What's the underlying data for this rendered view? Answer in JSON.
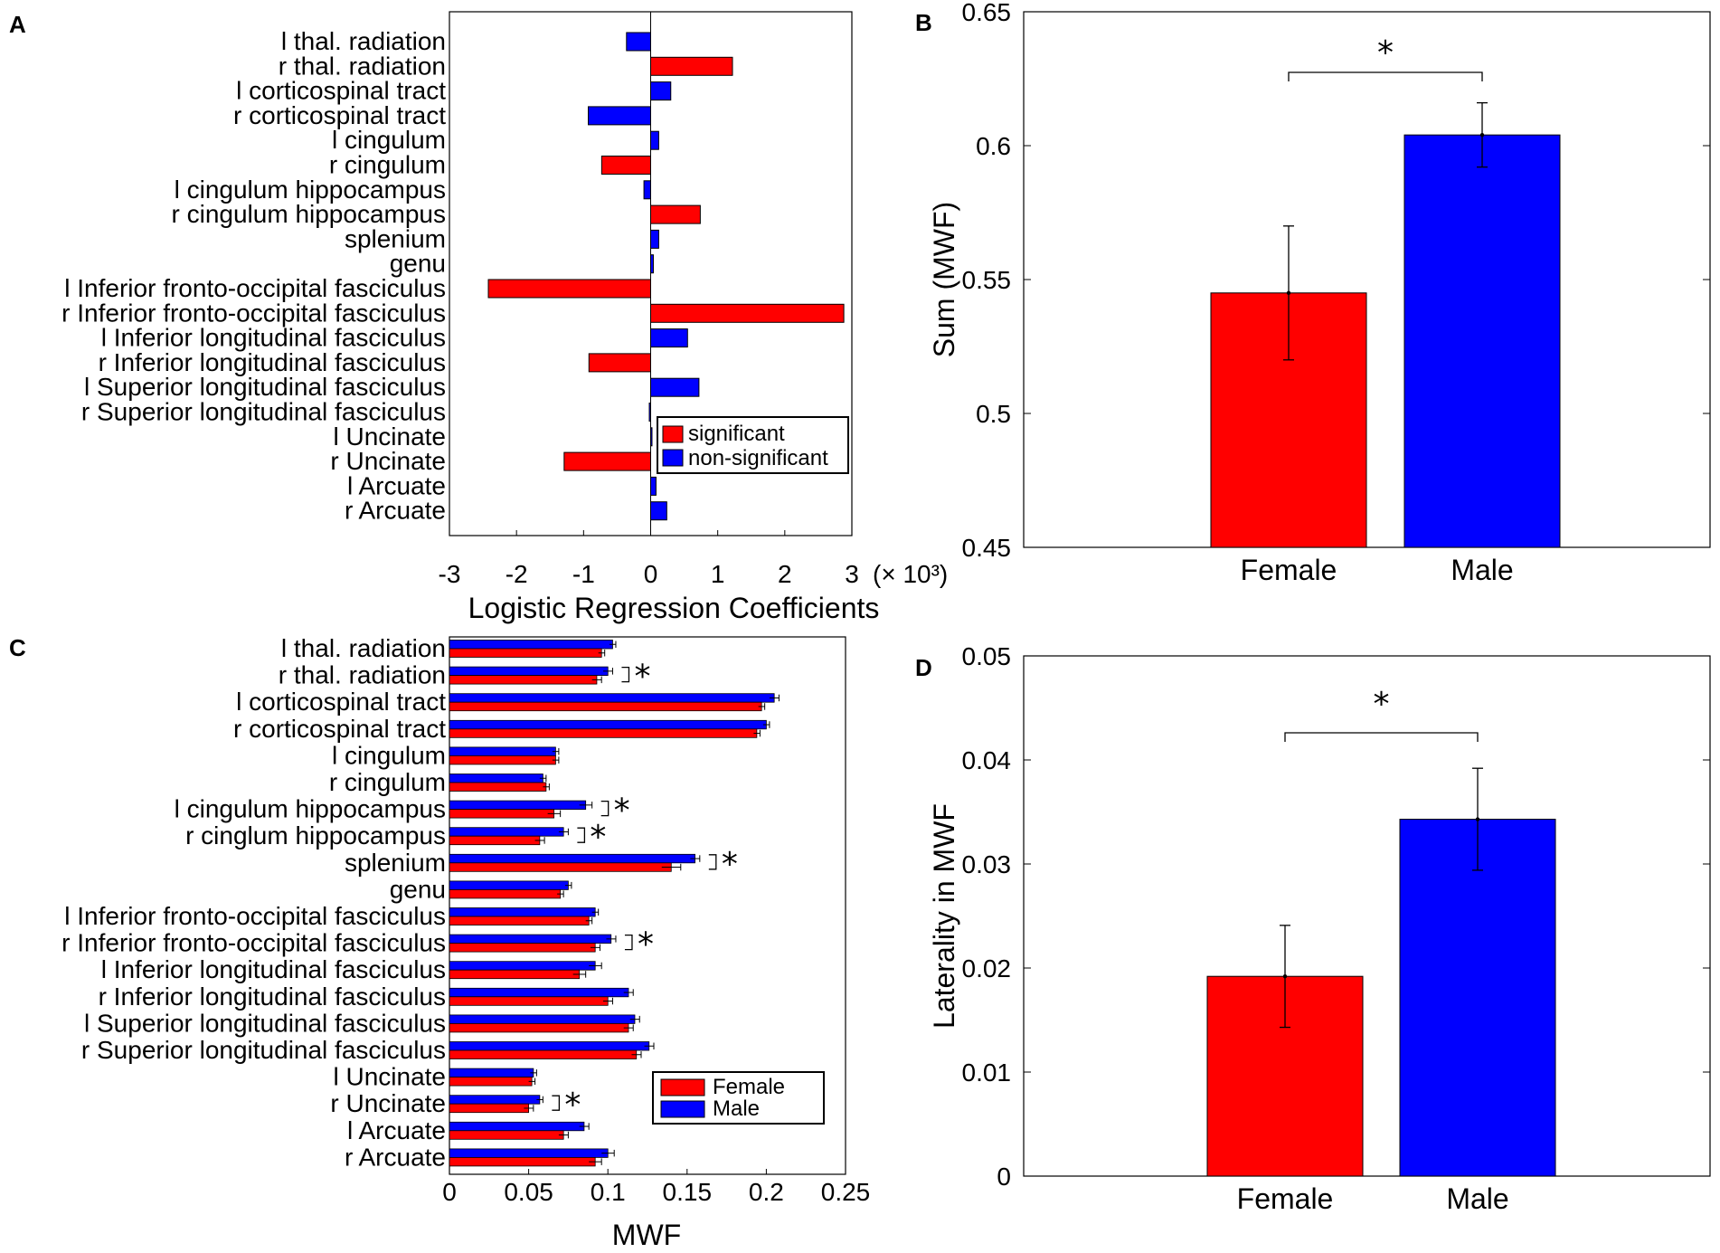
{
  "colors": {
    "red": "#ff0000",
    "blue": "#0000ff"
  },
  "chart_data": [
    {
      "panel": "A",
      "type": "bar",
      "orientation": "horizontal",
      "xlabel": "Logistic Regression Coefficients",
      "x_multiplier": "(× 10³)",
      "xlim": [
        -3,
        3
      ],
      "xticks": [
        "-3",
        "-2",
        "-1",
        "0",
        "1",
        "2",
        "3"
      ],
      "categories": [
        "l thal. radiation",
        "r thal. radiation",
        "l corticospinal tract",
        "r corticospinal tract",
        "l cingulum",
        "r cingulum",
        "l cingulum hippocampus",
        "r cingulum hippocampus",
        "splenium",
        "genu",
        "l Inferior fronto-occipital fasciculus",
        "r Inferior fronto-occipital fasciculus",
        "l Inferior longitudinal fasciculus",
        "r Inferior longitudinal fasciculus",
        "l Superior longitudinal fasciculus",
        "r Superior longitudinal fasciculus",
        "l Uncinate",
        "r Uncinate",
        "l Arcuate",
        "r Arcuate"
      ],
      "values": [
        -0.36,
        1.22,
        0.3,
        -0.93,
        0.12,
        -0.73,
        -0.1,
        0.74,
        0.12,
        0.04,
        -2.42,
        2.88,
        0.55,
        -0.92,
        0.72,
        -0.02,
        0.02,
        -1.29,
        0.08,
        0.24
      ],
      "significant": [
        false,
        true,
        false,
        false,
        false,
        true,
        false,
        true,
        false,
        false,
        true,
        true,
        false,
        true,
        false,
        false,
        false,
        true,
        false,
        false
      ],
      "legend": [
        "significant",
        "non-significant"
      ]
    },
    {
      "panel": "B",
      "type": "bar",
      "ylabel": "Sum (MWF)",
      "ylim": [
        0.45,
        0.65
      ],
      "yticks": [
        "0.45",
        "0.5",
        "0.55",
        "0.6",
        "0.65"
      ],
      "categories": [
        "Female",
        "Male"
      ],
      "values": [
        0.545,
        0.604
      ],
      "errors": [
        0.025,
        0.012
      ],
      "significance": "*"
    },
    {
      "panel": "C",
      "type": "bar",
      "orientation": "horizontal",
      "xlabel": "MWF",
      "xlim": [
        0,
        0.25
      ],
      "xticks": [
        "0",
        "0.05",
        "0.1",
        "0.15",
        "0.2",
        "0.25"
      ],
      "categories": [
        "l thal. radiation",
        "r thal. radiation",
        "l corticospinal tract",
        "r corticospinal tract",
        "l cingulum",
        "r cingulum",
        "l cingulum hippocampus",
        "r cinglum hippocampus",
        "splenium",
        "genu",
        "l Inferior fronto-occipital fasciculus",
        "r Inferior fronto-occipital fasciculus",
        "l Inferior longitudinal fasciculus",
        "r Inferior longitudinal fasciculus",
        "l Superior longitudinal fasciculus",
        "r Superior longitudinal fasciculus",
        "l Uncinate",
        "r Uncinate",
        "l Arcuate",
        "r Arcuate"
      ],
      "series": [
        {
          "name": "Female",
          "values": [
            0.096,
            0.093,
            0.197,
            0.194,
            0.067,
            0.061,
            0.066,
            0.057,
            0.14,
            0.07,
            0.088,
            0.092,
            0.082,
            0.1,
            0.113,
            0.118,
            0.052,
            0.05,
            0.072,
            0.092
          ],
          "errors": [
            0.002,
            0.003,
            0.002,
            0.002,
            0.002,
            0.002,
            0.004,
            0.003,
            0.006,
            0.002,
            0.002,
            0.003,
            0.004,
            0.003,
            0.003,
            0.003,
            0.002,
            0.003,
            0.003,
            0.004
          ]
        },
        {
          "name": "Male",
          "values": [
            0.103,
            0.1,
            0.205,
            0.2,
            0.067,
            0.059,
            0.086,
            0.072,
            0.155,
            0.075,
            0.092,
            0.102,
            0.092,
            0.113,
            0.117,
            0.126,
            0.053,
            0.057,
            0.085,
            0.1
          ],
          "errors": [
            0.002,
            0.003,
            0.003,
            0.002,
            0.002,
            0.002,
            0.004,
            0.003,
            0.003,
            0.002,
            0.002,
            0.003,
            0.004,
            0.003,
            0.003,
            0.003,
            0.002,
            0.002,
            0.003,
            0.004
          ]
        }
      ],
      "significant_rows": [
        1,
        6,
        7,
        8,
        11,
        17
      ],
      "significance_marker": "*",
      "legend": [
        "Female",
        "Male"
      ]
    },
    {
      "panel": "D",
      "type": "bar",
      "ylabel": "Laterality in MWF",
      "ylim": [
        0,
        0.05
      ],
      "yticks": [
        "0",
        "0.01",
        "0.02",
        "0.03",
        "0.04",
        "0.05"
      ],
      "categories": [
        "Female",
        "Male"
      ],
      "values": [
        0.0192,
        0.0343
      ],
      "errors": [
        0.0049,
        0.0049
      ],
      "significance": "*"
    }
  ]
}
